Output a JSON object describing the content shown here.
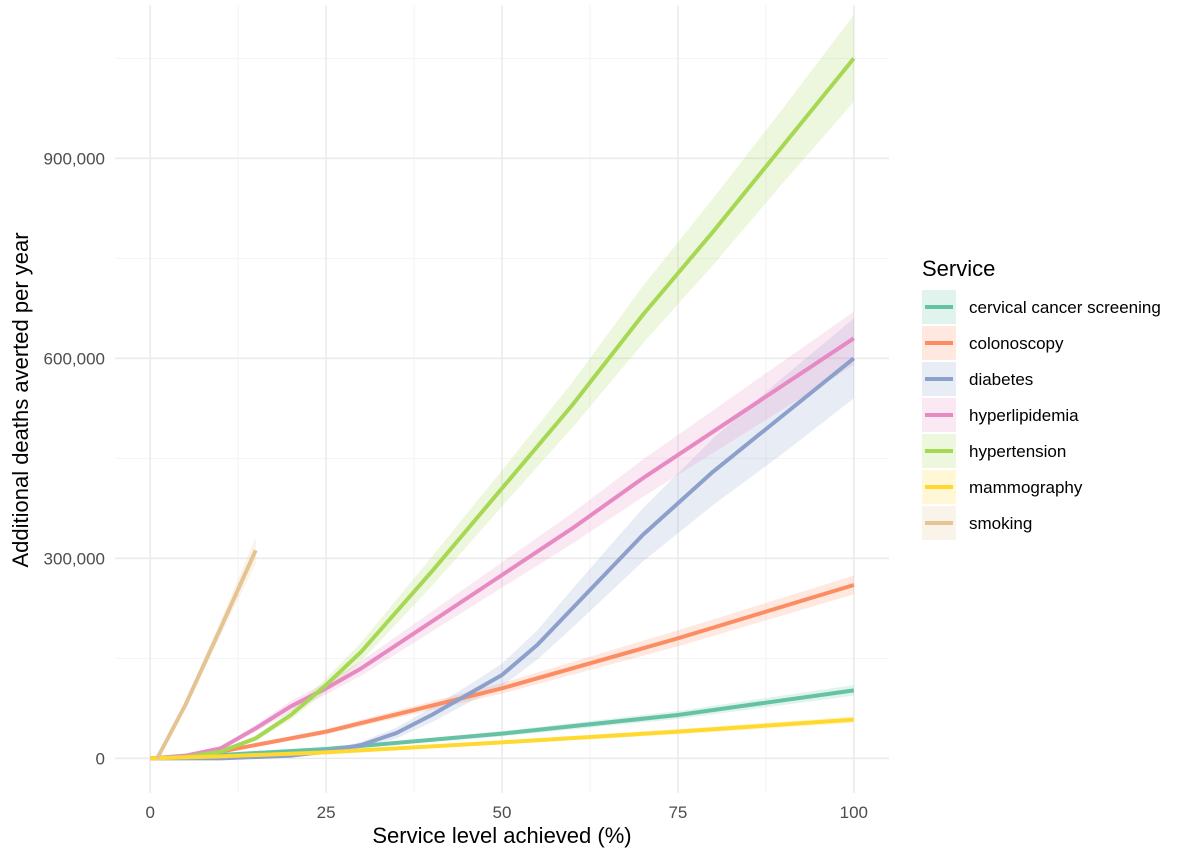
{
  "chart_data": {
    "type": "line",
    "xlabel": "Service level achieved (%)",
    "ylabel": "Additional deaths averted per year",
    "xlim": [
      -5,
      105
    ],
    "ylim": [
      -52000,
      1130000
    ],
    "x_ticks": [
      0,
      25,
      50,
      75,
      100
    ],
    "x_tick_labels": [
      "0",
      "25",
      "50",
      "75",
      "100"
    ],
    "y_ticks": [
      0,
      300000,
      600000,
      900000
    ],
    "y_tick_labels": [
      "0",
      "300,000",
      "600,000",
      "900,000"
    ],
    "grid": true,
    "legend": {
      "title": "Service",
      "placement": "right"
    },
    "series": [
      {
        "name": "cervical cancer screening",
        "color": "#66c2a5",
        "x": [
          0,
          10,
          25,
          50,
          75,
          100
        ],
        "values": [
          0,
          5000,
          14000,
          37000,
          65000,
          102000
        ],
        "lower": [
          0,
          4000,
          12000,
          33000,
          59000,
          94000
        ],
        "upper": [
          0,
          6000,
          16000,
          41000,
          71000,
          110000
        ]
      },
      {
        "name": "colonoscopy",
        "color": "#fc8d62",
        "x": [
          0,
          5,
          10,
          25,
          50,
          75,
          100
        ],
        "values": [
          0,
          2000,
          10000,
          40000,
          105000,
          180000,
          260000
        ],
        "lower": [
          0,
          1500,
          8000,
          36000,
          97000,
          168000,
          246000
        ],
        "upper": [
          0,
          2500,
          12000,
          44000,
          113000,
          192000,
          274000
        ]
      },
      {
        "name": "diabetes",
        "color": "#8da0cb",
        "x": [
          0,
          10,
          20,
          25,
          30,
          35,
          40,
          45,
          50,
          55,
          60,
          70,
          80,
          90,
          100
        ],
        "values": [
          0,
          0,
          4000,
          10000,
          20000,
          38000,
          65000,
          95000,
          125000,
          170000,
          225000,
          335000,
          430000,
          515000,
          600000
        ],
        "lower": [
          0,
          0,
          3000,
          8000,
          15000,
          30000,
          54000,
          82000,
          108000,
          148000,
          196000,
          295000,
          380000,
          458000,
          540000
        ],
        "upper": [
          0,
          0,
          5000,
          12000,
          25000,
          46000,
          76000,
          108000,
          142000,
          192000,
          254000,
          375000,
          480000,
          572000,
          660000
        ]
      },
      {
        "name": "hyperlipidemia",
        "color": "#e78ac3",
        "x": [
          0,
          5,
          10,
          15,
          20,
          25,
          30,
          40,
          50,
          60,
          70,
          80,
          90,
          100
        ],
        "values": [
          0,
          4000,
          15000,
          45000,
          78000,
          105000,
          135000,
          205000,
          275000,
          345000,
          420000,
          490000,
          560000,
          630000
        ],
        "lower": [
          0,
          3000,
          12000,
          40000,
          70000,
          96000,
          124000,
          190000,
          256000,
          322000,
          392000,
          458000,
          524000,
          590000
        ],
        "upper": [
          0,
          5000,
          18000,
          50000,
          86000,
          114000,
          146000,
          220000,
          294000,
          368000,
          448000,
          522000,
          596000,
          670000
        ]
      },
      {
        "name": "hypertension",
        "color": "#a6d854",
        "x": [
          0,
          5,
          10,
          15,
          20,
          25,
          30,
          40,
          50,
          60,
          70,
          80,
          90,
          100
        ],
        "values": [
          0,
          2000,
          10000,
          30000,
          65000,
          110000,
          160000,
          280000,
          405000,
          530000,
          665000,
          790000,
          920000,
          1050000
        ],
        "lower": [
          0,
          1500,
          8000,
          26000,
          58000,
          100000,
          146000,
          258000,
          378000,
          496000,
          622000,
          740000,
          864000,
          985000
        ],
        "upper": [
          0,
          2500,
          12000,
          34000,
          72000,
          120000,
          174000,
          302000,
          432000,
          564000,
          708000,
          840000,
          976000,
          1115000
        ]
      },
      {
        "name": "mammography",
        "color": "#ffd92f",
        "x": [
          0,
          10,
          25,
          50,
          75,
          100
        ],
        "values": [
          0,
          3000,
          9000,
          24000,
          40000,
          58000
        ],
        "lower": [
          0,
          2500,
          8000,
          21000,
          36000,
          53000
        ],
        "upper": [
          0,
          3500,
          10000,
          27000,
          44000,
          63000
        ]
      },
      {
        "name": "smoking",
        "color": "#e5c494",
        "x": [
          1,
          5,
          10,
          15
        ],
        "values": [
          0,
          80000,
          195000,
          312000
        ],
        "lower": [
          0,
          74000,
          184000,
          292000
        ],
        "upper": [
          0,
          86000,
          206000,
          332000
        ]
      }
    ]
  }
}
